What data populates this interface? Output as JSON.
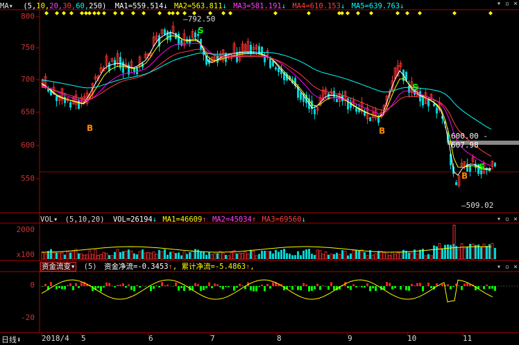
{
  "main": {
    "indicator_name": "MA",
    "params_prefix": "(5,",
    "param_1": "10,",
    "param_2": "20,",
    "param_3": "30,",
    "param_4": "60,",
    "param_5": "250)",
    "ma1": "MA1=559.514",
    "ma2": "MA2=563.811",
    "ma3": "MA3=581.191",
    "ma4": "MA4=610.153",
    "ma5": "MA5=639.763",
    "y_ticks": [
      "800",
      "750",
      "700",
      "650",
      "600",
      "550"
    ],
    "high_label": "792.50",
    "low_label": "509.02",
    "range_label": "600.00 - 607.98",
    "signal_buy": "B",
    "signal_sell": "S"
  },
  "volume": {
    "indicator_name": "VOL",
    "params": "(5,10,20)",
    "vol": "VOL=26194",
    "ma1": "MA1=46609",
    "ma2": "MA2=45034",
    "ma3": "MA3=69560",
    "y_ticks": [
      "2000",
      "x100"
    ]
  },
  "capital": {
    "indicator_name": "资金流变",
    "params": "(5)",
    "net": "资金净流=-0.3453",
    "cumulative": "累计净流=-5.4863",
    "y_ticks": [
      "0",
      "-20"
    ]
  },
  "x_axis": {
    "period": "日线",
    "labels": [
      "2018/4",
      "5",
      "6",
      "7",
      "8",
      "9",
      "10",
      "11"
    ]
  },
  "colors": {
    "ma1": "#ffffff",
    "ma2": "#ffff00",
    "ma3": "#ff00ff",
    "ma4": "#ff4040",
    "ma5": "#00ffff",
    "up": "#ff3232",
    "down": "#00d5d5",
    "axis": "#c33",
    "grid": "#8b0000"
  }
}
